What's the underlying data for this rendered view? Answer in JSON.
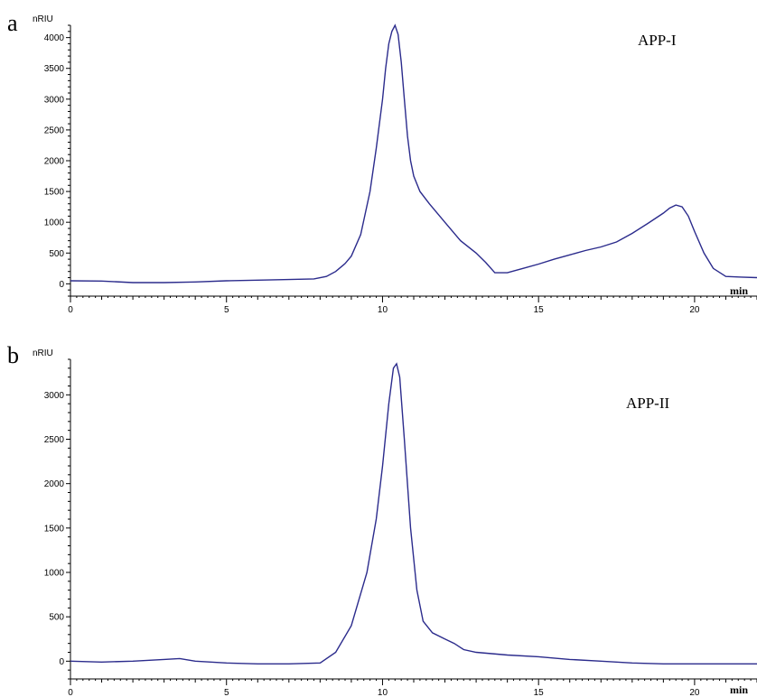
{
  "chart_data": [
    {
      "type": "line",
      "panel_label": "a",
      "annotation": "APP-I",
      "ylabel": "nRIU",
      "xlabel": "min",
      "xticks": [
        0,
        5,
        10,
        15,
        20
      ],
      "yticks": [
        0,
        500,
        1000,
        1500,
        2000,
        2500,
        3000,
        3500,
        4000
      ],
      "xlim": [
        0,
        22
      ],
      "ylim": [
        -200,
        4200
      ],
      "series": [
        {
          "x": [
            0,
            1,
            2,
            3,
            4,
            5,
            6,
            7,
            7.8,
            8.2,
            8.5,
            8.8,
            9.0,
            9.3,
            9.6,
            9.8,
            10.0,
            10.1,
            10.2,
            10.3,
            10.4,
            10.5,
            10.6,
            10.7,
            10.8,
            10.9,
            11.0,
            11.2,
            11.5,
            12.0,
            12.5,
            13.0,
            13.3,
            13.6,
            14.0,
            14.5,
            15.0,
            15.5,
            16.0,
            16.5,
            17.0,
            17.5,
            18.0,
            18.5,
            19.0,
            19.2,
            19.4,
            19.6,
            19.8,
            20.0,
            20.3,
            20.6,
            21.0,
            21.5,
            22.0
          ],
          "y": [
            50,
            45,
            20,
            20,
            30,
            50,
            60,
            70,
            80,
            120,
            200,
            330,
            450,
            800,
            1500,
            2200,
            3000,
            3500,
            3900,
            4100,
            4200,
            4050,
            3600,
            3000,
            2400,
            2000,
            1750,
            1500,
            1300,
            1000,
            700,
            500,
            350,
            180,
            180,
            250,
            320,
            400,
            470,
            540,
            600,
            680,
            820,
            980,
            1150,
            1230,
            1280,
            1250,
            1100,
            850,
            500,
            250,
            120,
            110,
            100
          ]
        }
      ]
    },
    {
      "type": "line",
      "panel_label": "b",
      "annotation": "APP-II",
      "ylabel": "nRIU",
      "xlabel": "min",
      "xticks": [
        0,
        5,
        10,
        15,
        20
      ],
      "yticks": [
        0,
        500,
        1000,
        1500,
        2000,
        2500,
        3000
      ],
      "xlim": [
        0,
        22
      ],
      "ylim": [
        -200,
        3400
      ],
      "series": [
        {
          "x": [
            0,
            1,
            2,
            3,
            3.5,
            4,
            5,
            6,
            7,
            8,
            8.5,
            9.0,
            9.5,
            9.8,
            10.0,
            10.2,
            10.35,
            10.45,
            10.55,
            10.7,
            10.9,
            11.1,
            11.3,
            11.6,
            12.0,
            12.3,
            12.6,
            13.0,
            14.0,
            15.0,
            16.0,
            17.0,
            18.0,
            19.0,
            20.0,
            21.0,
            22.0
          ],
          "y": [
            0,
            -10,
            0,
            20,
            30,
            0,
            -20,
            -30,
            -30,
            -20,
            100,
            400,
            1000,
            1600,
            2200,
            2900,
            3300,
            3350,
            3200,
            2500,
            1500,
            800,
            450,
            320,
            250,
            200,
            130,
            100,
            70,
            50,
            20,
            0,
            -20,
            -30,
            -30,
            -30,
            -30
          ]
        }
      ]
    }
  ]
}
